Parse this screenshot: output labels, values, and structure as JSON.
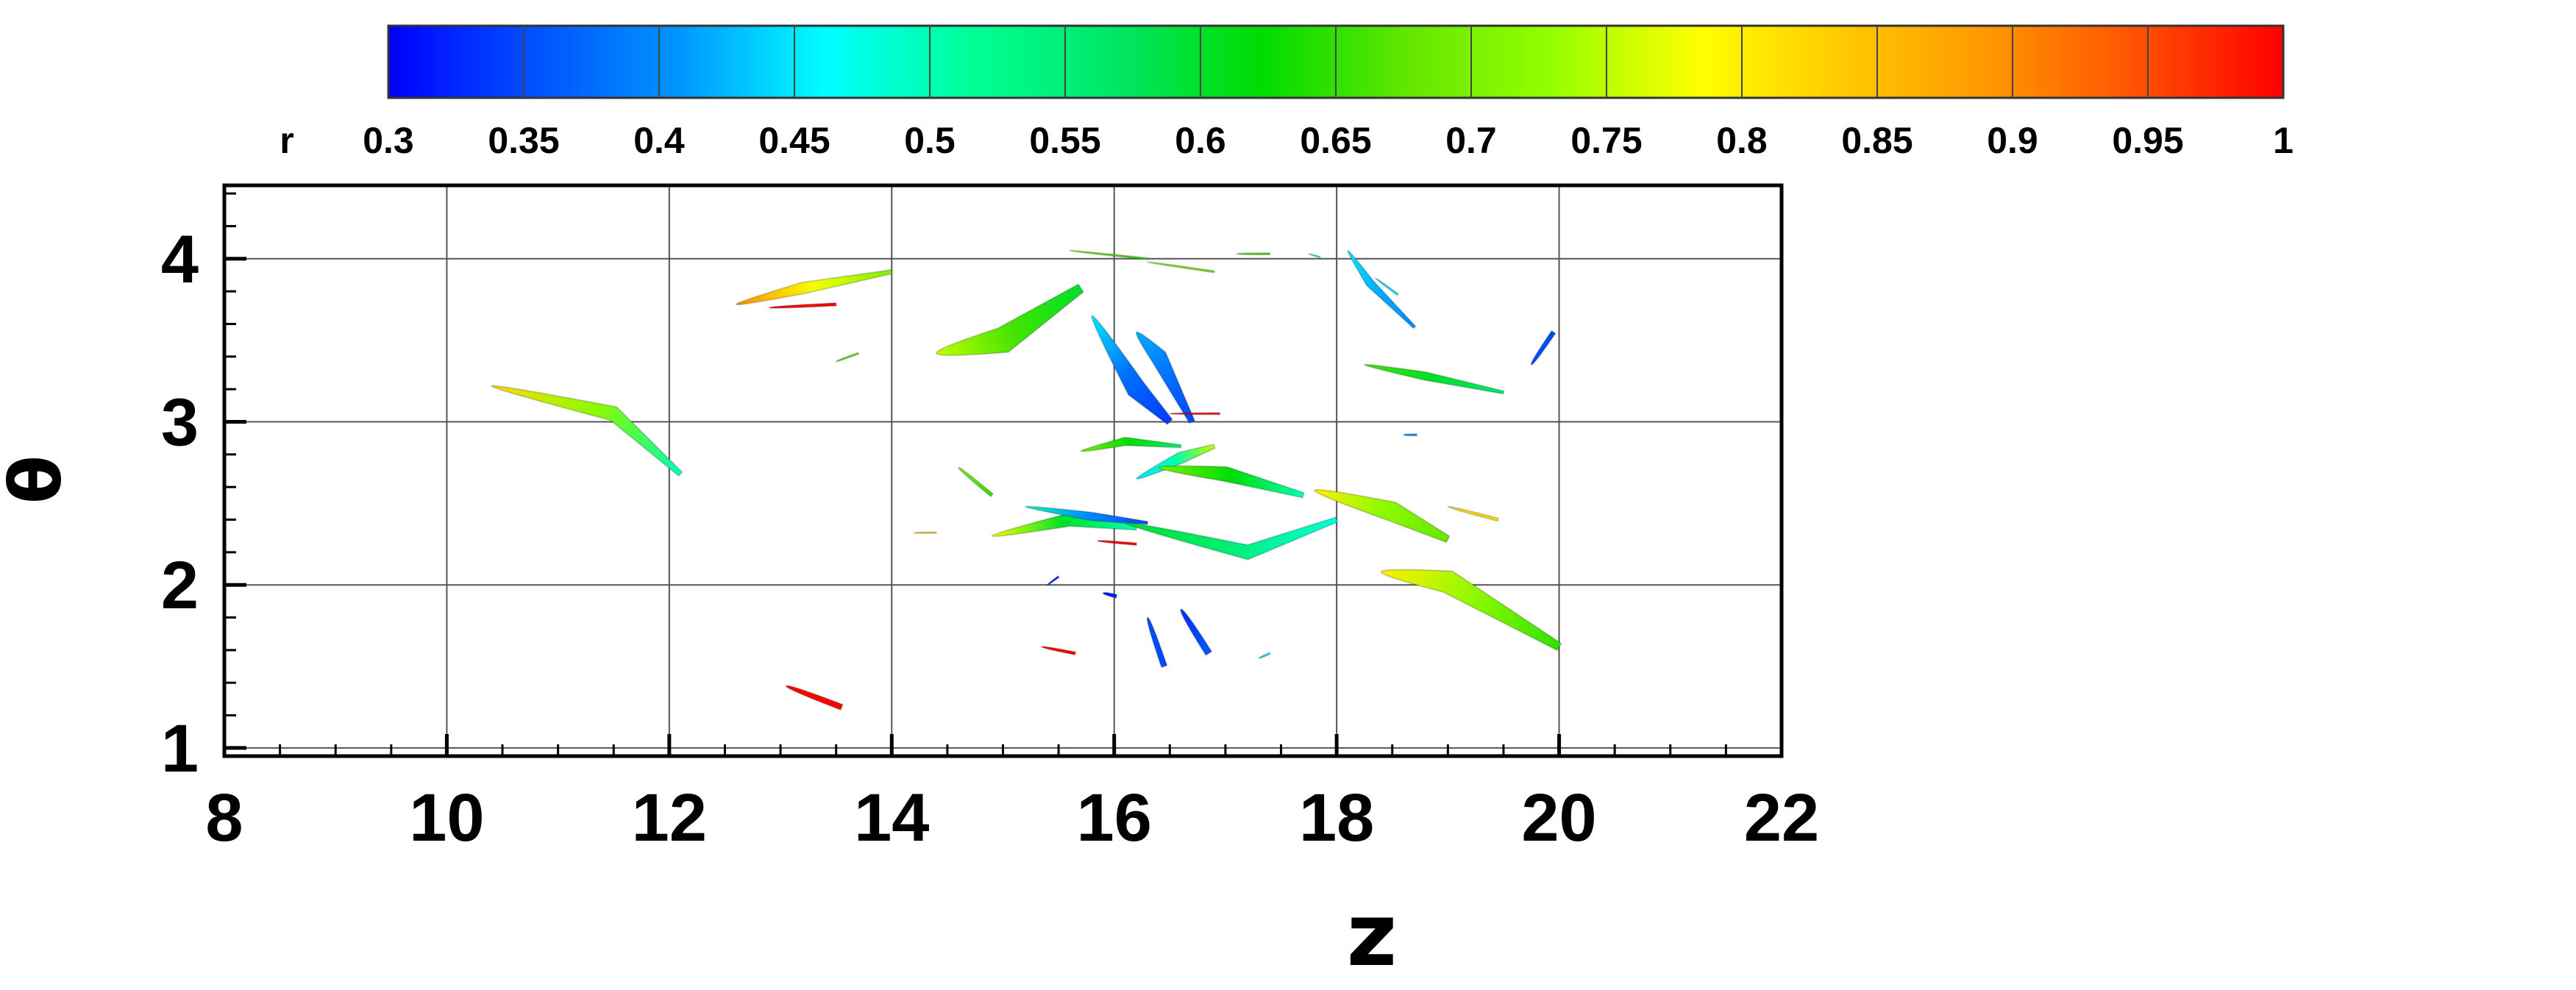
{
  "chart_data": {
    "type": "scatter",
    "title": "",
    "xlabel": "z",
    "ylabel": "θ",
    "xlim": [
      8,
      22
    ],
    "ylim": [
      0.95,
      4.45
    ],
    "x_ticks": [
      "8",
      "10",
      "12",
      "14",
      "16",
      "18",
      "20",
      "22"
    ],
    "y_ticks": [
      "1",
      "2",
      "3",
      "4"
    ],
    "grid": true,
    "colorbar": {
      "variable": "r",
      "ticks": [
        "0.3",
        "0.35",
        "0.4",
        "0.45",
        "0.5",
        "0.55",
        "0.6",
        "0.65",
        "0.7",
        "0.75",
        "0.8",
        "0.85",
        "0.9",
        "0.95",
        "1"
      ],
      "range": [
        0.3,
        1.0
      ],
      "colors": [
        "#0000ff",
        "#0050ff",
        "#0096ff",
        "#00ffff",
        "#00ff96",
        "#00e664",
        "#00dc00",
        "#64e600",
        "#96ff00",
        "#ffff00",
        "#ffc800",
        "#ff9600",
        "#ff5000",
        "#ff0000"
      ],
      "placement": "top"
    },
    "structures": [
      {
        "z": [
          10.4,
          11.5,
          12.1
        ],
        "theta": [
          3.22,
          3.05,
          2.68
        ],
        "r": [
          0.82,
          0.72,
          0.5
        ],
        "width": 0.09
      },
      {
        "z": [
          12.6,
          13.2,
          14.0
        ],
        "theta": [
          3.72,
          3.82,
          3.92
        ],
        "r": [
          0.9,
          0.78,
          0.7
        ],
        "width": 0.07
      },
      {
        "z": [
          12.9,
          13.5
        ],
        "theta": [
          3.7,
          3.72
        ],
        "r": [
          1.0,
          1.0
        ],
        "width": 0.05
      },
      {
        "z": [
          13.5,
          13.7
        ],
        "theta": [
          3.37,
          3.42
        ],
        "r": [
          0.66,
          0.7
        ],
        "width": 0.03
      },
      {
        "z": [
          13.05,
          13.55
        ],
        "theta": [
          1.38,
          1.25
        ],
        "r": [
          1.0,
          1.0
        ],
        "width": 0.1
      },
      {
        "z": [
          14.4,
          15.0,
          15.7
        ],
        "theta": [
          3.42,
          3.5,
          3.82
        ],
        "r": [
          0.75,
          0.66,
          0.6
        ],
        "width": 0.16
      },
      {
        "z": [
          15.6,
          16.3
        ],
        "theta": [
          4.05,
          4.0
        ],
        "r": [
          0.7,
          0.65
        ],
        "width": 0.03
      },
      {
        "z": [
          16.3,
          16.9
        ],
        "theta": [
          3.98,
          3.92
        ],
        "r": [
          0.72,
          0.68
        ],
        "width": 0.03
      },
      {
        "z": [
          17.1,
          17.4
        ],
        "theta": [
          4.03,
          4.03
        ],
        "r": [
          0.66,
          0.66
        ],
        "width": 0.03
      },
      {
        "z": [
          15.8,
          16.2,
          16.5
        ],
        "theta": [
          3.65,
          3.2,
          3.0
        ],
        "r": [
          0.45,
          0.38,
          0.34
        ],
        "width": 0.12
      },
      {
        "z": [
          16.2,
          16.4,
          16.7
        ],
        "theta": [
          3.55,
          3.4,
          3.0
        ],
        "r": [
          0.42,
          0.38,
          0.35
        ],
        "width": 0.1
      },
      {
        "z": [
          15.7,
          16.1,
          16.6
        ],
        "theta": [
          2.82,
          2.88,
          2.85
        ],
        "r": [
          0.7,
          0.62,
          0.55
        ],
        "width": 0.05
      },
      {
        "z": [
          16.2,
          16.6,
          16.9
        ],
        "theta": [
          2.65,
          2.78,
          2.85
        ],
        "r": [
          0.45,
          0.5,
          0.75
        ],
        "width": 0.07
      },
      {
        "z": [
          16.4,
          17.0,
          17.7
        ],
        "theta": [
          2.72,
          2.68,
          2.55
        ],
        "r": [
          0.7,
          0.62,
          0.5
        ],
        "width": 0.09
      },
      {
        "z": [
          14.6,
          14.9
        ],
        "theta": [
          2.72,
          2.55
        ],
        "r": [
          0.7,
          0.65
        ],
        "width": 0.06
      },
      {
        "z": [
          14.9,
          15.6,
          16.2
        ],
        "theta": [
          2.3,
          2.4,
          2.35
        ],
        "r": [
          0.78,
          0.6,
          0.5
        ],
        "width": 0.08
      },
      {
        "z": [
          15.2,
          15.8,
          16.3
        ],
        "theta": [
          2.48,
          2.42,
          2.38
        ],
        "r": [
          0.5,
          0.4,
          0.35
        ],
        "width": 0.05
      },
      {
        "z": [
          16.1,
          17.2,
          18.0
        ],
        "theta": [
          2.38,
          2.2,
          2.4
        ],
        "r": [
          0.6,
          0.55,
          0.48
        ],
        "width": 0.09
      },
      {
        "z": [
          14.2,
          14.4
        ],
        "theta": [
          2.32,
          2.32
        ],
        "r": [
          0.85,
          0.85
        ],
        "width": 0.02
      },
      {
        "z": [
          15.85,
          16.2
        ],
        "theta": [
          2.27,
          2.25
        ],
        "r": [
          1.0,
          1.0
        ],
        "width": 0.04
      },
      {
        "z": [
          16.5,
          16.95
        ],
        "theta": [
          3.05,
          3.05
        ],
        "r": [
          1.0,
          1.0
        ],
        "width": 0.03
      },
      {
        "z": [
          15.35,
          15.65
        ],
        "theta": [
          1.62,
          1.58
        ],
        "r": [
          1.0,
          1.0
        ],
        "width": 0.05
      },
      {
        "z": [
          17.8,
          18.5,
          19.0
        ],
        "theta": [
          2.58,
          2.45,
          2.28
        ],
        "r": [
          0.8,
          0.72,
          0.68
        ],
        "width": 0.12
      },
      {
        "z": [
          18.25,
          18.8,
          19.5
        ],
        "theta": [
          3.35,
          3.28,
          3.18
        ],
        "r": [
          0.66,
          0.6,
          0.56
        ],
        "width": 0.05
      },
      {
        "z": [
          19.0,
          19.45
        ],
        "theta": [
          2.48,
          2.4
        ],
        "r": [
          0.82,
          0.82
        ],
        "width": 0.05
      },
      {
        "z": [
          18.4,
          19.0,
          20.0
        ],
        "theta": [
          2.08,
          2.02,
          1.62
        ],
        "r": [
          0.8,
          0.72,
          0.65
        ],
        "width": 0.14
      },
      {
        "z": [
          18.1,
          18.3,
          18.7
        ],
        "theta": [
          4.05,
          3.85,
          3.58
        ],
        "r": [
          0.45,
          0.42,
          0.4
        ],
        "width": 0.05
      },
      {
        "z": [
          18.35,
          18.55
        ],
        "theta": [
          3.88,
          3.78
        ],
        "r": [
          0.45,
          0.45
        ],
        "width": 0.03
      },
      {
        "z": [
          19.75,
          19.95
        ],
        "theta": [
          3.35,
          3.55
        ],
        "r": [
          0.35,
          0.35
        ],
        "width": 0.08
      },
      {
        "z": [
          15.9,
          16.02
        ],
        "theta": [
          1.95,
          1.93
        ],
        "r": [
          0.32,
          0.32
        ],
        "width": 0.06
      },
      {
        "z": [
          16.3,
          16.45
        ],
        "theta": [
          1.8,
          1.5
        ],
        "r": [
          0.35,
          0.35
        ],
        "width": 0.1
      },
      {
        "z": [
          16.6,
          16.85
        ],
        "theta": [
          1.85,
          1.58
        ],
        "r": [
          0.33,
          0.36
        ],
        "width": 0.12
      },
      {
        "z": [
          15.4,
          15.5
        ],
        "theta": [
          2.0,
          2.05
        ],
        "r": [
          0.32,
          0.32
        ],
        "width": 0.03
      },
      {
        "z": [
          17.3,
          17.4
        ],
        "theta": [
          1.55,
          1.58
        ],
        "r": [
          0.45,
          0.45
        ],
        "width": 0.03
      },
      {
        "z": [
          18.6,
          18.72
        ],
        "theta": [
          2.92,
          2.92
        ],
        "r": [
          0.4,
          0.4
        ],
        "width": 0.03
      },
      {
        "z": [
          17.75,
          17.85
        ],
        "theta": [
          4.03,
          4.01
        ],
        "r": [
          0.5,
          0.5
        ],
        "width": 0.02
      }
    ]
  }
}
